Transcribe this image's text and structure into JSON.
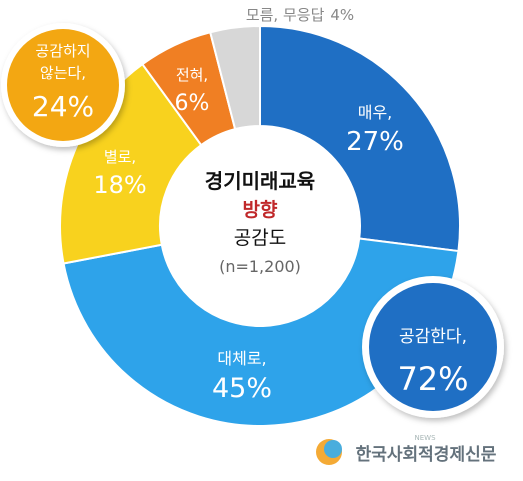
{
  "chart_data": {
    "type": "pie",
    "center": {
      "line1": "경기미래교육",
      "line2": "방향",
      "line3": "공감도",
      "sample": "(n=1,200)"
    },
    "slices": [
      {
        "label": "매우,",
        "value": 27,
        "value_text": "27%",
        "color": "#1f6fc4"
      },
      {
        "label": "대체로,",
        "value": 45,
        "value_text": "45%",
        "color": "#2ea3ea"
      },
      {
        "label": "별로,",
        "value": 18,
        "value_text": "18%",
        "color": "#f8d21e"
      },
      {
        "label": "전혀,",
        "value": 6,
        "value_text": "6%",
        "color": "#f07f23"
      },
      {
        "label": "모름, 무응답",
        "value": 4,
        "value_text": "4%",
        "color": "#d7d7d7"
      }
    ],
    "groups": [
      {
        "label": "공감한다,",
        "value": 72,
        "value_text": "72%",
        "color": "#1f6fc4"
      },
      {
        "label_line1": "공감하지",
        "label_line2": "않는다,",
        "value": 24,
        "value_text": "24%",
        "color": "#f3a712"
      }
    ]
  },
  "watermark": {
    "text": "한국사회적경제신문",
    "sub": "NEWS"
  }
}
